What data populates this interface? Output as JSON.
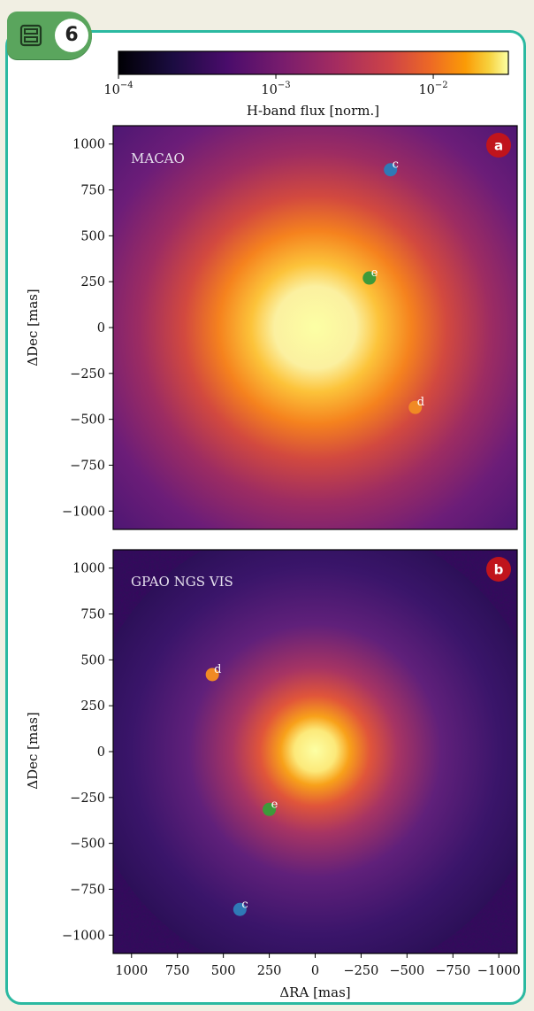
{
  "figure_number": "6",
  "icon": "figure-panel-icon",
  "colors": {
    "frame": "#2bb9a1",
    "badge": "#5aa55d",
    "panel_letter_badge": "#c0141c",
    "star_c": "#2f79b6",
    "star_d": "#f08a24",
    "star_e": "#3d9a3a"
  },
  "colorbar": {
    "label": "H-band flux [norm.]",
    "scale": "log",
    "range": [
      0.0001,
      0.03
    ],
    "colormap": "inferno",
    "ticks": [
      {
        "value": 0.0001,
        "base": "10",
        "exp": "−4"
      },
      {
        "value": 0.001,
        "base": "10",
        "exp": "−3"
      },
      {
        "value": 0.01,
        "base": "10",
        "exp": "−2"
      }
    ]
  },
  "chart_data": [
    {
      "type": "heatmap",
      "panel_letter": "a",
      "title": "MACAO",
      "xlabel": "",
      "ylabel": "ΔDec [mas]",
      "xlim": [
        1100,
        -1100
      ],
      "ylim": [
        -1100,
        1100
      ],
      "x_ticks": [],
      "y_ticks": [
        "1000",
        "750",
        "500",
        "250",
        "0",
        "−250",
        "−500",
        "−750",
        "−1000"
      ],
      "y_tick_values": [
        1000,
        750,
        500,
        250,
        0,
        -250,
        -500,
        -750,
        -1000
      ],
      "halo_fwhm_mas": 300,
      "sources": [
        {
          "label": "c",
          "x": -410,
          "y": 860,
          "color": "#2f79b6"
        },
        {
          "label": "e",
          "x": -295,
          "y": 270,
          "color": "#3d9a3a"
        },
        {
          "label": "d",
          "x": -545,
          "y": -435,
          "color": "#f08a24"
        }
      ]
    },
    {
      "type": "heatmap",
      "panel_letter": "b",
      "title": "GPAO NGS VIS",
      "xlabel": "ΔRA [mas]",
      "ylabel": "ΔDec [mas]",
      "xlim": [
        1100,
        -1100
      ],
      "ylim": [
        -1100,
        1100
      ],
      "x_ticks": [
        "1000",
        "750",
        "500",
        "250",
        "0",
        "−250",
        "−500",
        "−750",
        "−1000"
      ],
      "x_tick_values": [
        1000,
        750,
        500,
        250,
        0,
        -250,
        -500,
        -750,
        -1000
      ],
      "y_ticks": [
        "1000",
        "750",
        "500",
        "250",
        "0",
        "−250",
        "−500",
        "−750",
        "−1000"
      ],
      "y_tick_values": [
        1000,
        750,
        500,
        250,
        0,
        -250,
        -500,
        -750,
        -1000
      ],
      "halo_fwhm_mas": 150,
      "sources": [
        {
          "label": "d",
          "x": 560,
          "y": 420,
          "color": "#f08a24"
        },
        {
          "label": "e",
          "x": 250,
          "y": -315,
          "color": "#3d9a3a"
        },
        {
          "label": "c",
          "x": 410,
          "y": -860,
          "color": "#2f79b6"
        }
      ]
    }
  ]
}
